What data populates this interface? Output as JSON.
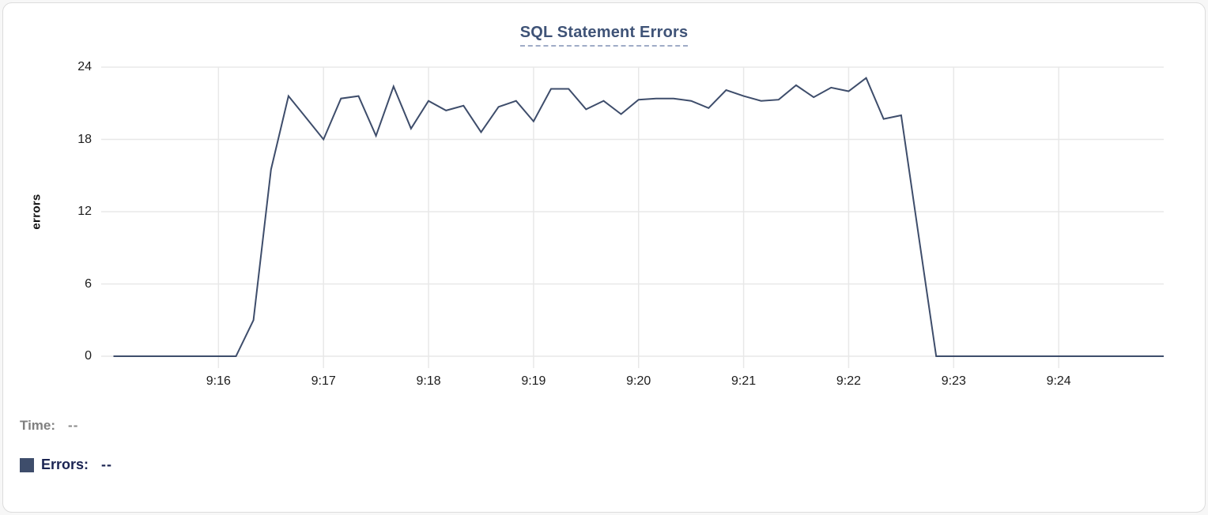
{
  "legend": {
    "time_label": "Time:",
    "time_value": "--",
    "errors_label": "Errors:",
    "errors_value": "--",
    "swatch_color": "#3e4d6b"
  },
  "chart_data": {
    "type": "line",
    "title": "SQL Statement Errors",
    "xlabel": "",
    "ylabel": "errors",
    "ylim": [
      0,
      24
    ],
    "yticks": [
      0,
      6,
      12,
      18,
      24
    ],
    "xticks": [
      "9:16",
      "9:17",
      "9:18",
      "9:19",
      "9:20",
      "9:21",
      "9:22",
      "9:23",
      "9:24"
    ],
    "x_range": [
      "9:14:53",
      "9:25:00"
    ],
    "grid": true,
    "legend_position": "bottom-left",
    "line_color": "#3e4d6b",
    "grid_color": "#e8e8e8",
    "series": [
      {
        "name": "Errors",
        "points": [
          [
            "9:15:00",
            0
          ],
          [
            "9:15:10",
            0
          ],
          [
            "9:15:20",
            0
          ],
          [
            "9:15:30",
            0
          ],
          [
            "9:15:40",
            0
          ],
          [
            "9:15:50",
            0
          ],
          [
            "9:16:00",
            0
          ],
          [
            "9:16:10",
            0
          ],
          [
            "9:16:20",
            3
          ],
          [
            "9:16:30",
            15.5
          ],
          [
            "9:16:40",
            21.6
          ],
          [
            "9:16:50",
            19.8
          ],
          [
            "9:17:00",
            18
          ],
          [
            "9:17:10",
            21.4
          ],
          [
            "9:17:20",
            21.6
          ],
          [
            "9:17:30",
            18.3
          ],
          [
            "9:17:40",
            22.4
          ],
          [
            "9:17:50",
            18.9
          ],
          [
            "9:18:00",
            21.2
          ],
          [
            "9:18:10",
            20.4
          ],
          [
            "9:18:20",
            20.8
          ],
          [
            "9:18:30",
            18.6
          ],
          [
            "9:18:40",
            20.7
          ],
          [
            "9:18:50",
            21.2
          ],
          [
            "9:19:00",
            19.5
          ],
          [
            "9:19:10",
            22.2
          ],
          [
            "9:19:20",
            22.2
          ],
          [
            "9:19:30",
            20.5
          ],
          [
            "9:19:40",
            21.2
          ],
          [
            "9:19:50",
            20.1
          ],
          [
            "9:20:00",
            21.3
          ],
          [
            "9:20:10",
            21.4
          ],
          [
            "9:20:20",
            21.4
          ],
          [
            "9:20:30",
            21.2
          ],
          [
            "9:20:40",
            20.6
          ],
          [
            "9:20:50",
            22.1
          ],
          [
            "9:21:00",
            21.6
          ],
          [
            "9:21:10",
            21.2
          ],
          [
            "9:21:20",
            21.3
          ],
          [
            "9:21:30",
            22.5
          ],
          [
            "9:21:40",
            21.5
          ],
          [
            "9:21:50",
            22.3
          ],
          [
            "9:22:00",
            22.0
          ],
          [
            "9:22:10",
            23.1
          ],
          [
            "9:22:20",
            19.7
          ],
          [
            "9:22:30",
            20.0
          ],
          [
            "9:22:40",
            10
          ],
          [
            "9:22:50",
            0
          ],
          [
            "9:23:00",
            0
          ],
          [
            "9:23:10",
            0
          ],
          [
            "9:23:20",
            0
          ],
          [
            "9:23:30",
            0
          ],
          [
            "9:23:40",
            0
          ],
          [
            "9:23:50",
            0
          ],
          [
            "9:24:00",
            0
          ],
          [
            "9:24:10",
            0
          ],
          [
            "9:24:20",
            0
          ],
          [
            "9:24:30",
            0
          ],
          [
            "9:24:40",
            0
          ],
          [
            "9:24:50",
            0
          ],
          [
            "9:25:00",
            0
          ]
        ]
      }
    ]
  }
}
